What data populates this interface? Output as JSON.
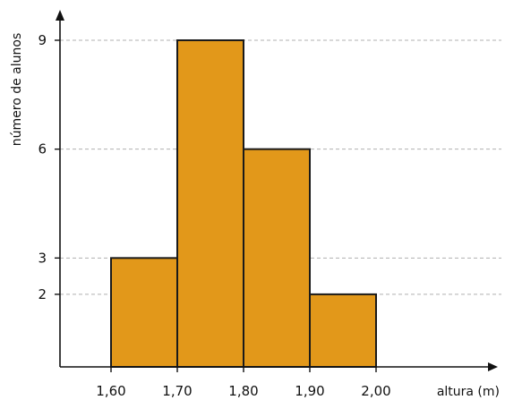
{
  "chart_data": {
    "type": "bar",
    "subtype": "histogram",
    "title": "",
    "xlabel": "altura (m)",
    "ylabel": "número de alunos",
    "bins": [
      {
        "start": 1.6,
        "end": 1.7,
        "value": 3
      },
      {
        "start": 1.7,
        "end": 1.8,
        "value": 9
      },
      {
        "start": 1.8,
        "end": 1.9,
        "value": 6
      },
      {
        "start": 1.9,
        "end": 2.0,
        "value": 2
      }
    ],
    "x_ticks": [
      {
        "value": 1.6,
        "label": "1,60"
      },
      {
        "value": 1.7,
        "label": "1,70"
      },
      {
        "value": 1.8,
        "label": "1,80"
      },
      {
        "value": 1.9,
        "label": "1,90"
      },
      {
        "value": 2.0,
        "label": "2,00"
      }
    ],
    "y_ticks": [
      {
        "value": 2,
        "label": "2"
      },
      {
        "value": 3,
        "label": "3"
      },
      {
        "value": 6,
        "label": "6"
      },
      {
        "value": 9,
        "label": "9"
      }
    ],
    "gridlines": "horizontal dashed at y ticks",
    "legend": "none",
    "colors": {
      "bar_fill": "#e2981a",
      "bar_stroke": "#1a1a1a",
      "grid": "#b0b0b0",
      "axis": "#111111"
    }
  }
}
